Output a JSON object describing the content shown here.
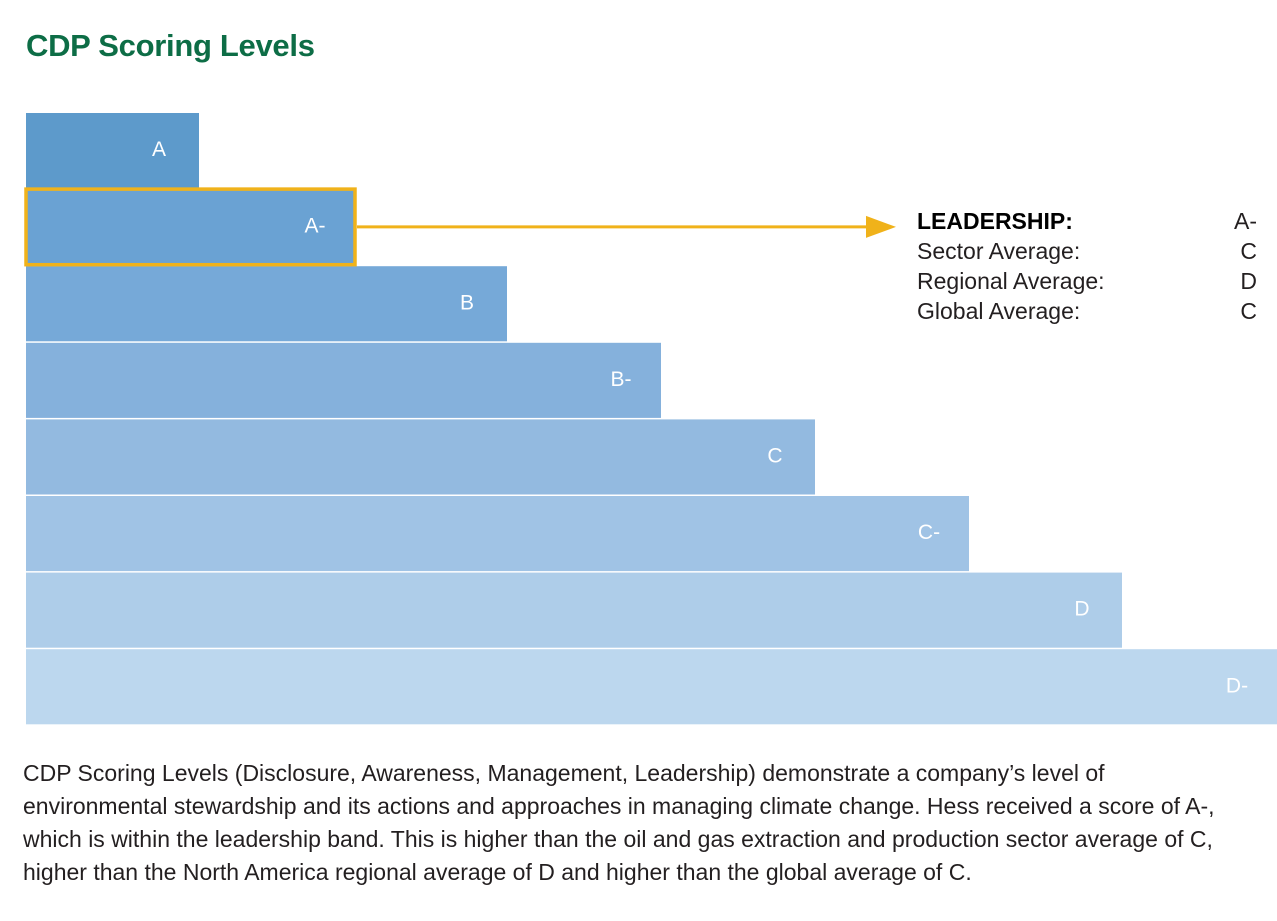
{
  "title": "CDP Scoring Levels",
  "chart_data": {
    "type": "bar",
    "orientation": "horizontal",
    "title": "CDP Scoring Levels",
    "categories": [
      "A",
      "A-",
      "B",
      "B-",
      "C",
      "C-",
      "D",
      "D-"
    ],
    "values": [
      1,
      2,
      3,
      4,
      5,
      6,
      7,
      8
    ],
    "highlighted": "A-",
    "colors": [
      "#5d9acb",
      "#6aa2d3",
      "#76a9d8",
      "#85b1dc",
      "#93baE0",
      "#a0c3e5",
      "#aecde9",
      "#bcd7ee"
    ],
    "highlight_color": "#f0b21a"
  },
  "scores": [
    {
      "label": "LEADERSHIP:",
      "value": "A-"
    },
    {
      "label": "Sector Average:",
      "value": "C"
    },
    {
      "label": "Regional Average:",
      "value": "D"
    },
    {
      "label": "Global Average:",
      "value": "C"
    }
  ],
  "caption": "CDP Scoring Levels (Disclosure, Awareness, Management, Leadership) demonstrate a company’s level of environmental stewardship and its actions and approaches in managing climate change. Hess received a score of A-, which is within the leadership band. This is higher than the oil and gas extraction and production sector average of C, higher than the North America regional average of D and higher than the global average of C."
}
